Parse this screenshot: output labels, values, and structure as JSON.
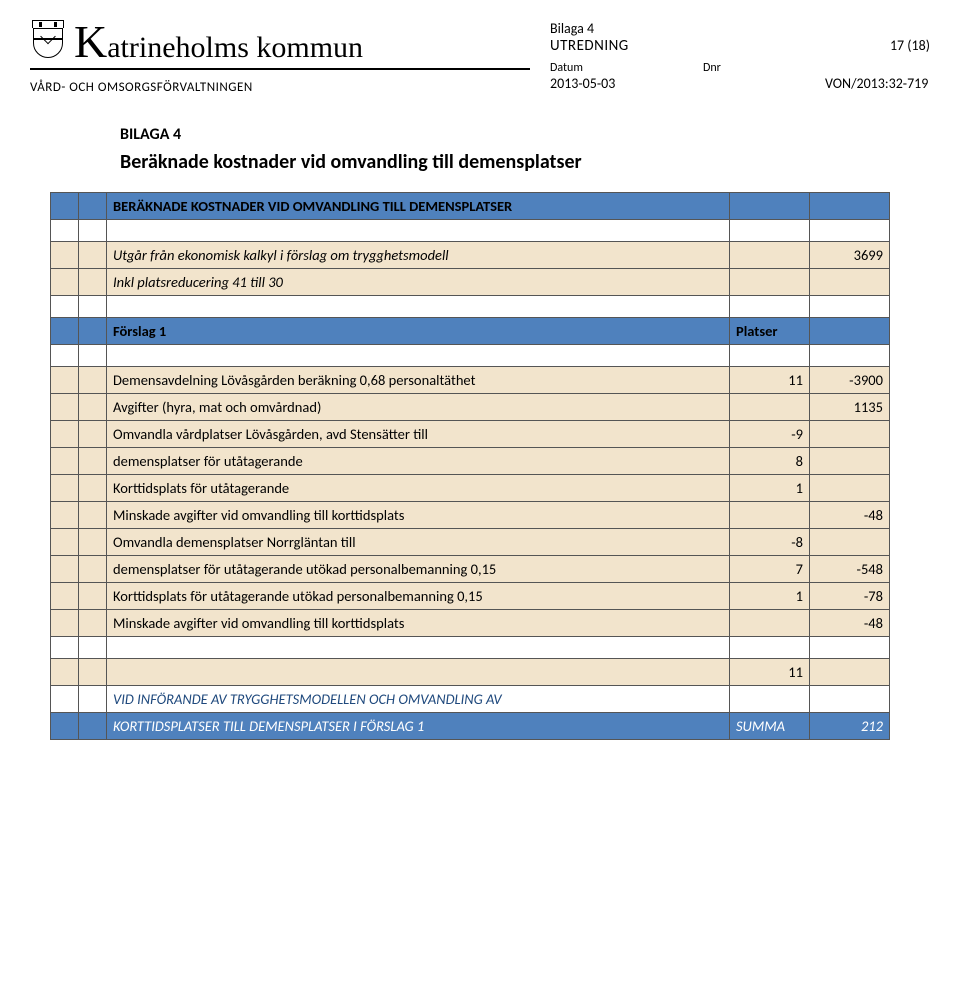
{
  "header": {
    "municipality_initial": "K",
    "municipality_rest": "atrineholms kommun",
    "department": "VÅRD- OCH OMSORGSFÖRVALTNINGEN",
    "bilaga_line": "Bilaga 4",
    "doc_type": "UTREDNING",
    "page": "17 (18)",
    "datum_label": "Datum",
    "datum_value": "2013-05-03",
    "dnr_label": "Dnr",
    "dnr_value": "VON/2013:32-719"
  },
  "section": {
    "bilaga": "BILAGA 4",
    "title": "Beräknade kostnader vid omvandling till demensplatser"
  },
  "table": {
    "rows": [
      {
        "cls": "blue",
        "a": "",
        "b": "",
        "c": "BERÄKNADE KOSTNADER VID OMVANDLING TILL DEMENSPLATSER",
        "c_bold": true,
        "d": "",
        "e": ""
      },
      {
        "cls": "",
        "a": "",
        "b": "",
        "c": "",
        "d": "",
        "e": ""
      },
      {
        "cls": "beige",
        "a": "",
        "b": "",
        "c": "Utgår från ekonomisk kalkyl i förslag om trygghetsmodell",
        "c_ital": true,
        "d": "",
        "e": "3699"
      },
      {
        "cls": "beige",
        "a": "",
        "b": "",
        "c": "Inkl platsreducering 41 till 30",
        "c_ital": true,
        "d": "",
        "e": ""
      },
      {
        "cls": "",
        "a": "",
        "b": "",
        "c": "",
        "d": "",
        "e": ""
      },
      {
        "cls": "blue",
        "a": "",
        "b": "",
        "c": "Förslag 1",
        "c_bold": true,
        "d": "Platser",
        "d_bold": true,
        "d_left": true,
        "e": ""
      },
      {
        "cls": "",
        "a": "",
        "b": "",
        "c": "",
        "d": "",
        "e": ""
      },
      {
        "cls": "beige",
        "a": "",
        "b": "",
        "c": "Demensavdelning Lövåsgården beräkning 0,68 personaltäthet",
        "d": "11",
        "e": "-3900"
      },
      {
        "cls": "beige",
        "a": "",
        "b": "",
        "c": "Avgifter (hyra, mat och omvårdnad)",
        "d": "",
        "e": "1135"
      },
      {
        "cls": "beige",
        "a": "",
        "b": "",
        "c": "Omvandla vårdplatser Lövåsgården, avd Stensätter till",
        "d": "-9",
        "e": ""
      },
      {
        "cls": "beige",
        "a": "",
        "b": "",
        "c": "demensplatser för utåtagerande",
        "d": "8",
        "e": ""
      },
      {
        "cls": "beige",
        "a": "",
        "b": "",
        "c": "Korttidsplats för utåtagerande",
        "d": "1",
        "e": ""
      },
      {
        "cls": "beige",
        "a": "",
        "b": "",
        "c": "Minskade avgifter vid omvandling till korttidsplats",
        "d": "",
        "e": "-48"
      },
      {
        "cls": "beige",
        "a": "",
        "b": "",
        "c": "Omvandla demensplatser Norrgläntan till",
        "d": "-8",
        "e": ""
      },
      {
        "cls": "beige",
        "a": "",
        "b": "",
        "c": "demensplatser för utåtagerande  utökad personalbemanning 0,15",
        "d": "7",
        "e": "-548"
      },
      {
        "cls": "beige",
        "a": "",
        "b": "",
        "c": "Korttidsplats för utåtagerande utökad personalbemanning 0,15",
        "d": "1",
        "e": "-78"
      },
      {
        "cls": "beige",
        "a": "",
        "b": "",
        "c": "Minskade avgifter vid omvandling till korttidsplats",
        "d": "",
        "e": "-48"
      },
      {
        "cls": "",
        "a": "",
        "b": "",
        "c": "",
        "d": "",
        "e": ""
      },
      {
        "cls": "beige",
        "a": "",
        "b": "",
        "c": "",
        "d": "11",
        "e": ""
      },
      {
        "cls": "blue-text-row",
        "a": "",
        "b": "",
        "c": "VID INFÖRANDE AV TRYGGHETSMODELLEN OCH OMVANDLING AV",
        "d": "",
        "e": ""
      },
      {
        "cls": "summa-row",
        "a": "",
        "b": "",
        "c": "KORTTIDSPLATSER TILL DEMENSPLATSER I FÖRSLAG 1",
        "d": "SUMMA",
        "d_left": true,
        "e": "212"
      }
    ]
  },
  "style": {
    "blue": "#4f81bd",
    "beige": "#f2e4cc",
    "text_blue": "#1f497d"
  }
}
